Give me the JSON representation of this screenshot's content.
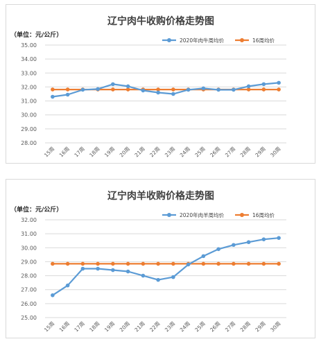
{
  "chart_data": [
    {
      "type": "line",
      "title": "辽宁肉牛收购价格走势图",
      "unit_label": "（单位：元/公斤）",
      "categories": [
        "15周",
        "16周",
        "17周",
        "18周",
        "19周",
        "20周",
        "21周",
        "22周",
        "23周",
        "24周",
        "25周",
        "26周",
        "27周",
        "28周",
        "29周",
        "30周"
      ],
      "ylim": [
        28.0,
        35.0
      ],
      "yticks": [
        "35.00",
        "34.00",
        "33.00",
        "32.00",
        "31.00",
        "30.00",
        "29.00",
        "28.00"
      ],
      "legend_position": "top-right",
      "grid": true,
      "series": [
        {
          "name": "2020年肉牛周均价",
          "color": "#5b9bd5",
          "values": [
            31.3,
            31.45,
            31.8,
            31.85,
            32.2,
            32.05,
            31.75,
            31.6,
            31.5,
            31.8,
            31.9,
            31.8,
            31.8,
            32.05,
            32.2,
            32.3
          ]
        },
        {
          "name": "16周均价",
          "color": "#ed7d31",
          "values": [
            31.82,
            31.82,
            31.82,
            31.82,
            31.82,
            31.82,
            31.82,
            31.82,
            31.82,
            31.82,
            31.82,
            31.82,
            31.82,
            31.82,
            31.82,
            31.82
          ]
        }
      ]
    },
    {
      "type": "line",
      "title": "辽宁肉羊收购价格走势图",
      "unit_label": "（单位：元/公斤）",
      "categories": [
        "15周",
        "16周",
        "17周",
        "18周",
        "19周",
        "20周",
        "21周",
        "22周",
        "23周",
        "24周",
        "25周",
        "26周",
        "27周",
        "28周",
        "29周",
        "30周"
      ],
      "ylim": [
        25.0,
        32.0
      ],
      "yticks": [
        "32.00",
        "31.00",
        "30.00",
        "29.00",
        "28.00",
        "27.00",
        "26.00",
        "25.00"
      ],
      "legend_position": "top-right",
      "grid": true,
      "series": [
        {
          "name": "2020年肉羊周均价",
          "color": "#5b9bd5",
          "values": [
            26.6,
            27.3,
            28.5,
            28.5,
            28.4,
            28.3,
            28.0,
            27.7,
            27.9,
            28.8,
            29.4,
            29.9,
            30.2,
            30.4,
            30.6,
            30.7
          ]
        },
        {
          "name": "16周均价",
          "color": "#ed7d31",
          "values": [
            28.85,
            28.85,
            28.85,
            28.85,
            28.85,
            28.85,
            28.85,
            28.85,
            28.85,
            28.85,
            28.85,
            28.85,
            28.85,
            28.85,
            28.85,
            28.85
          ]
        }
      ]
    }
  ]
}
